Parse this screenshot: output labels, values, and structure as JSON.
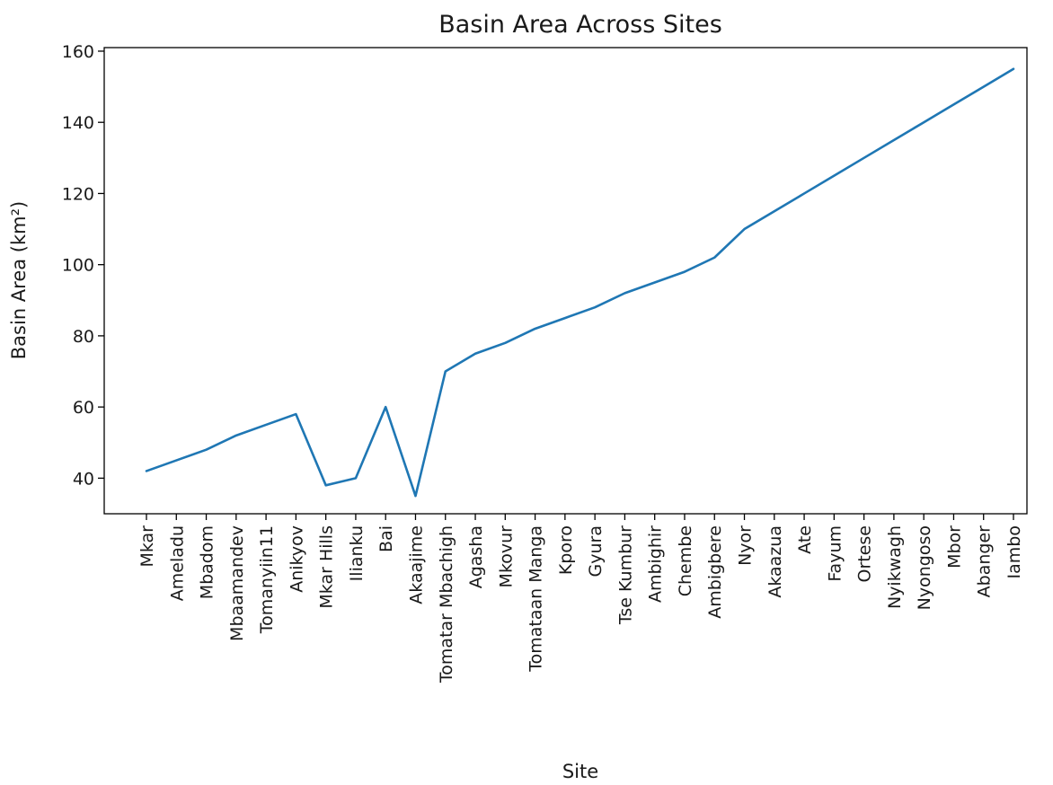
{
  "chart_data": {
    "type": "line",
    "title": "Basin Area Across Sites",
    "xlabel": "Site",
    "ylabel": "Basin Area (km²)",
    "ylim": [
      30.0,
      161.0
    ],
    "yticks": [
      40,
      60,
      80,
      100,
      120,
      140,
      160
    ],
    "grid": false,
    "line_color": "#1f77b4",
    "categories": [
      "Mkar",
      "Ameladu",
      "Mbadom",
      "Mbaamandev",
      "Tomanyiin11",
      "Anikyov",
      "Mkar Hills",
      "Ilianku",
      "Bai",
      "Akaajime",
      "Tomatar Mbachigh",
      "Agasha",
      "Mkovur",
      "Tomataan Manga",
      "Kporo",
      "Gyura",
      "Tse Kumbur",
      "Ambighir",
      "Chembe",
      "Ambigbere",
      "Nyor",
      "Akaazua",
      "Ate",
      "Fayum",
      "Ortese",
      "Nyikwagh",
      "Nyongoso",
      "Mbor",
      "Abanger",
      "Iambo"
    ],
    "series": [
      {
        "values": [
          42,
          45,
          48,
          52,
          55,
          58,
          38,
          40,
          60,
          35,
          70,
          75,
          78,
          82,
          85,
          88,
          92,
          95,
          98,
          102,
          110,
          115,
          120,
          125,
          130,
          135,
          140,
          145,
          150,
          155
        ]
      }
    ]
  }
}
